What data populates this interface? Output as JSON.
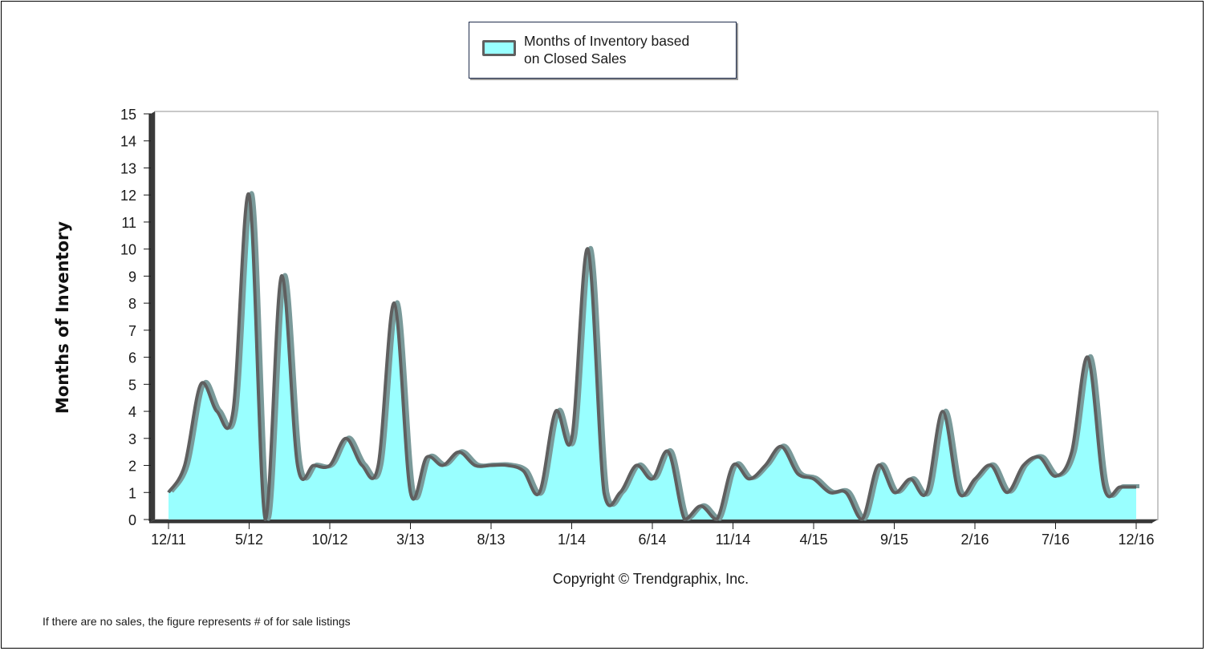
{
  "chart_data": {
    "type": "area",
    "legend": "Months of Inventory based\non Closed Sales",
    "legend_position": "top-center",
    "ylabel": "Months of Inventory",
    "ylim": [
      0,
      15
    ],
    "yticks": [
      0,
      1,
      2,
      3,
      4,
      5,
      6,
      7,
      8,
      9,
      10,
      11,
      12,
      13,
      14,
      15
    ],
    "xlim": [
      0,
      60
    ],
    "xticks": [
      {
        "pos": 0,
        "label": "12/11"
      },
      {
        "pos": 5,
        "label": "5/12"
      },
      {
        "pos": 10,
        "label": "10/12"
      },
      {
        "pos": 15,
        "label": "3/13"
      },
      {
        "pos": 20,
        "label": "8/13"
      },
      {
        "pos": 25,
        "label": "1/14"
      },
      {
        "pos": 30,
        "label": "6/14"
      },
      {
        "pos": 35,
        "label": "11/14"
      },
      {
        "pos": 40,
        "label": "4/15"
      },
      {
        "pos": 45,
        "label": "9/15"
      },
      {
        "pos": 50,
        "label": "2/16"
      },
      {
        "pos": 55,
        "label": "7/16"
      },
      {
        "pos": 60,
        "label": "12/16"
      }
    ],
    "series": [
      {
        "name": "Months of Inventory based on Closed Sales",
        "x": [
          0,
          1,
          2,
          3,
          4,
          5,
          6,
          7,
          8,
          9,
          10,
          11,
          12,
          13,
          14,
          15,
          16,
          17,
          18,
          19,
          20,
          21,
          22,
          23,
          24,
          25,
          26,
          27,
          28,
          29,
          30,
          31,
          32,
          33,
          34,
          35,
          36,
          37,
          38,
          39,
          40,
          41,
          42,
          43,
          44,
          45,
          46,
          47,
          48,
          49,
          50,
          51,
          52,
          53,
          54,
          55,
          56,
          57,
          58,
          59,
          60
        ],
        "values": [
          1,
          2,
          5,
          4,
          4,
          12,
          0,
          9,
          2,
          2,
          2,
          3,
          2,
          2,
          8,
          1,
          2.3,
          2,
          2.5,
          2,
          2,
          2,
          1.8,
          1,
          4,
          3,
          10,
          1,
          1,
          2,
          1.5,
          2.5,
          0,
          0.5,
          0,
          2,
          1.5,
          2,
          2.7,
          1.7,
          1.5,
          1,
          1,
          0,
          2,
          1,
          1.5,
          1,
          4,
          1,
          1.5,
          2,
          1,
          2,
          2.3,
          1.6,
          2.5,
          6,
          1.2,
          1.2,
          1.2
        ]
      }
    ],
    "colors": {
      "fill": "#99ffff",
      "line": "#5f5f5f",
      "plot_border": "#b5b5b5",
      "axis": "#1a1a1a"
    },
    "grid": false
  },
  "footer": {
    "copyright": "Copyright © Trendgraphix, Inc.",
    "note": "If there are no sales, the figure represents # of for sale listings"
  }
}
